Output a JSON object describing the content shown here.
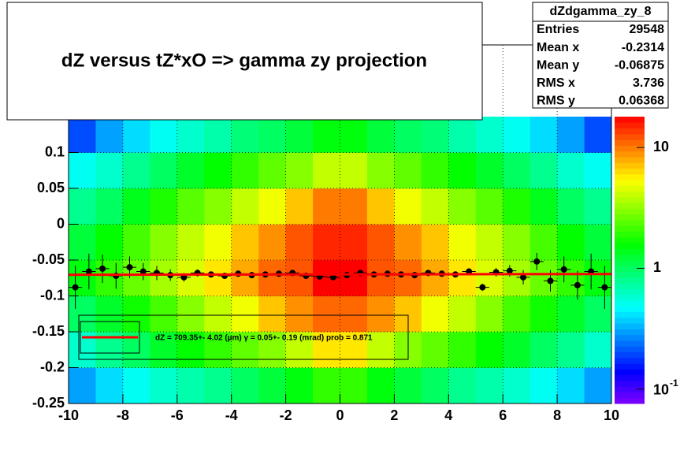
{
  "chart_data": {
    "type": "heatmap",
    "title": "dZ  versus  tZ*xO      =>  gamma zy projection",
    "xlim": [
      -10,
      10
    ],
    "ylim": [
      -0.25,
      0.25
    ],
    "xticks": [
      -10,
      -8,
      -6,
      -4,
      -2,
      0,
      2,
      4,
      6,
      8,
      10
    ],
    "yticks": [
      -0.25,
      -0.2,
      -0.15,
      -0.1,
      -0.05,
      0,
      0.05,
      0.1
    ],
    "grid": true,
    "zlim": [
      0.076,
      18
    ],
    "zlog": true,
    "zticks": [
      {
        "value": 0.1,
        "label": "10",
        "exponent": "-1"
      },
      1,
      10
    ],
    "heatmap": {
      "xbins": [
        -10,
        -9,
        -8,
        -7,
        -6,
        -5,
        -4,
        -3,
        -2,
        -1,
        0,
        1,
        2,
        3,
        4,
        5,
        6,
        7,
        8,
        9,
        10
      ],
      "ybins": [
        -0.25,
        -0.2,
        -0.15,
        -0.1,
        -0.05,
        0,
        0.05,
        0.1,
        0.15
      ],
      "z": [
        [
          0.3,
          0.4,
          0.5,
          0.6,
          0.7,
          0.8,
          1,
          1.2,
          1.5,
          2,
          2,
          1.5,
          1.2,
          1,
          0.8,
          0.7,
          0.6,
          0.5,
          0.4,
          0.3
        ],
        [
          0.6,
          0.8,
          1,
          1.3,
          1.6,
          2,
          2.5,
          3,
          4,
          6,
          6,
          4,
          3,
          2.5,
          2,
          1.6,
          1.3,
          1,
          0.8,
          0.6
        ],
        [
          1,
          1.3,
          1.7,
          2.2,
          3,
          4,
          5,
          7,
          9,
          11,
          11,
          9,
          7,
          5,
          4,
          3,
          2.2,
          1.7,
          1.3,
          1
        ],
        [
          1.5,
          2,
          2.6,
          3.5,
          4.5,
          6,
          8,
          11,
          12,
          18,
          18,
          12,
          11,
          8,
          6,
          4.5,
          3.5,
          2.6,
          2,
          1.5
        ],
        [
          1.2,
          1.6,
          2.2,
          3,
          4,
          5,
          7,
          9,
          12,
          15,
          15,
          12,
          9,
          7,
          5,
          4,
          3,
          2.2,
          1.6,
          1.2
        ],
        [
          0.8,
          1,
          1.4,
          1.8,
          2.4,
          3,
          4,
          5,
          7,
          10,
          10,
          7,
          5,
          4,
          3,
          2.4,
          1.8,
          1.4,
          1,
          0.8
        ],
        [
          0.5,
          0.6,
          0.8,
          1,
          1.3,
          1.6,
          2,
          2.5,
          3,
          4,
          4,
          3,
          2.5,
          2,
          1.6,
          1.3,
          1,
          0.8,
          0.6,
          0.5
        ],
        [
          0.2,
          0.3,
          0.4,
          0.5,
          0.6,
          0.7,
          0.9,
          1,
          1.2,
          1.5,
          1.5,
          1.2,
          1,
          0.9,
          0.7,
          0.6,
          0.5,
          0.4,
          0.3,
          0.2
        ]
      ]
    },
    "profile": {
      "color": "#000000",
      "x": [
        -9.75,
        -9.25,
        -8.75,
        -8.25,
        -7.75,
        -7.25,
        -6.75,
        -6.25,
        -5.75,
        -5.25,
        -4.75,
        -4.25,
        -3.75,
        -3.25,
        -2.75,
        -2.25,
        -1.75,
        -1.25,
        -0.75,
        -0.25,
        0.25,
        0.75,
        1.25,
        1.75,
        2.25,
        2.75,
        3.25,
        3.75,
        4.25,
        4.75,
        5.25,
        5.75,
        6.25,
        6.75,
        7.25,
        7.75,
        8.25,
        8.75,
        9.25,
        9.75
      ],
      "values": [
        -0.088,
        -0.066,
        -0.062,
        -0.072,
        -0.06,
        -0.066,
        -0.068,
        -0.071,
        -0.074,
        -0.068,
        -0.07,
        -0.072,
        -0.069,
        -0.071,
        -0.07,
        -0.069,
        -0.068,
        -0.072,
        -0.073,
        -0.074,
        -0.071,
        -0.068,
        -0.07,
        -0.069,
        -0.07,
        -0.071,
        -0.068,
        -0.069,
        -0.07,
        -0.066,
        -0.088,
        -0.067,
        -0.065,
        -0.074,
        -0.052,
        -0.079,
        -0.063,
        -0.085,
        -0.066,
        -0.088
      ],
      "errors": [
        0.03,
        0.025,
        0.02,
        0.018,
        0.015,
        0.012,
        0.01,
        0.008,
        0.006,
        0.005,
        0.004,
        0.004,
        0.003,
        0.003,
        0.003,
        0.003,
        0.002,
        0.002,
        0.002,
        0.002,
        0.002,
        0.002,
        0.002,
        0.002,
        0.003,
        0.003,
        0.003,
        0.003,
        0.004,
        0.004,
        0.005,
        0.006,
        0.008,
        0.01,
        0.012,
        0.015,
        0.018,
        0.02,
        0.025,
        0.03
      ]
    },
    "fit": {
      "color": "#ff0000",
      "x": [
        -10,
        10
      ],
      "values": [
        -0.0705,
        -0.0695
      ]
    },
    "fit_label": "dZ = 709.35+- 4.02 (µm) γ =   0.05+- 0.19 (mrad) prob = 0.871",
    "stats": {
      "title": "dZdgamma_zy_8",
      "rows": [
        [
          "Entries",
          "29548"
        ],
        [
          "Mean x",
          "-0.2314"
        ],
        [
          "Mean y",
          "-0.06875"
        ],
        [
          "RMS x",
          "3.736"
        ],
        [
          "RMS y",
          "0.06368"
        ]
      ]
    }
  }
}
